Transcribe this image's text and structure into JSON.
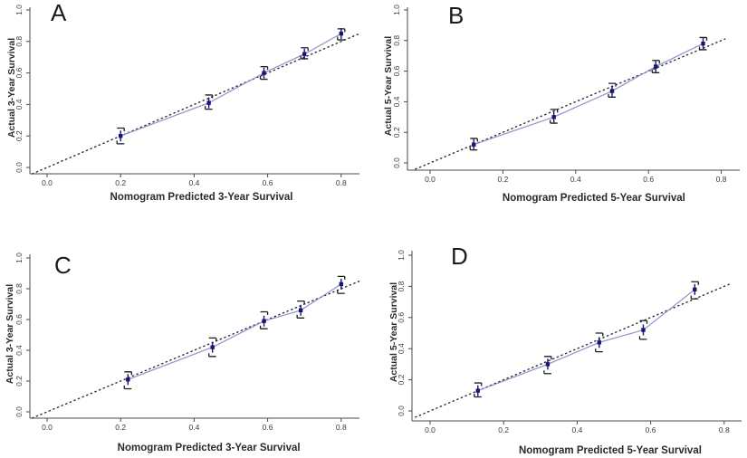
{
  "colors": {
    "background": "#ffffff",
    "calibration_line": "#9191cb",
    "marker": "#161679",
    "error_bar": "#1c1c1c",
    "reference_line": "#2e2e2e",
    "axis": "#4a4a4a",
    "tick_text": "#3b3b3b",
    "label_text": "#2a2a2a"
  },
  "chart_data": [
    {
      "type": "line",
      "panel_label": "A",
      "xlabel": "Nomogram Predicted 3-Year Survival",
      "ylabel": "Actual 3-Year Survival",
      "xlim": [
        -0.05,
        0.86
      ],
      "ylim": [
        -0.06,
        1.04
      ],
      "x_ticks": [
        0.0,
        0.2,
        0.4,
        0.6,
        0.8
      ],
      "x_tick_labels": [
        "0.0",
        "0.2",
        "0.4",
        "0.6",
        "0.8"
      ],
      "y_ticks": [
        0.0,
        0.2,
        0.4,
        0.6,
        0.8,
        1.0
      ],
      "y_tick_labels": [
        "0.0",
        "0.2",
        "0.4",
        "0.6",
        "0.8",
        "1.0"
      ],
      "grid": false,
      "reference_line": {
        "name": "ideal",
        "style": "dotted",
        "x_start": -0.04,
        "x_end": 0.85
      },
      "series": [
        {
          "name": "nomogram-calibration",
          "marker": "filled-square",
          "error_bars": true,
          "points": [
            {
              "x": 0.2,
              "y": 0.2,
              "lo": 0.15,
              "hi": 0.25
            },
            {
              "x": 0.44,
              "y": 0.41,
              "lo": 0.37,
              "hi": 0.46
            },
            {
              "x": 0.59,
              "y": 0.6,
              "lo": 0.56,
              "hi": 0.64
            },
            {
              "x": 0.7,
              "y": 0.72,
              "lo": 0.69,
              "hi": 0.76
            },
            {
              "x": 0.8,
              "y": 0.85,
              "lo": 0.81,
              "hi": 0.88
            }
          ]
        }
      ]
    },
    {
      "type": "line",
      "panel_label": "B",
      "xlabel": "Nomogram Predicted 5-Year Survival",
      "ylabel": "Actual 5-Year Survival",
      "xlim": [
        -0.05,
        0.86
      ],
      "ylim": [
        -0.06,
        1.04
      ],
      "x_ticks": [
        0.0,
        0.2,
        0.4,
        0.6,
        0.8
      ],
      "x_tick_labels": [
        "0.0",
        "0.2",
        "0.4",
        "0.6",
        "0.8"
      ],
      "y_ticks": [
        0.0,
        0.2,
        0.4,
        0.6,
        0.8,
        1.0
      ],
      "y_tick_labels": [
        "0.0",
        "0.2",
        "0.4",
        "0.6",
        "0.8",
        "1.0"
      ],
      "grid": false,
      "reference_line": {
        "name": "ideal",
        "style": "dotted",
        "x_start": -0.04,
        "x_end": 0.81
      },
      "series": [
        {
          "name": "nomogram-calibration",
          "marker": "filled-square",
          "error_bars": true,
          "points": [
            {
              "x": 0.12,
              "y": 0.12,
              "lo": 0.085,
              "hi": 0.16
            },
            {
              "x": 0.34,
              "y": 0.3,
              "lo": 0.26,
              "hi": 0.35
            },
            {
              "x": 0.5,
              "y": 0.47,
              "lo": 0.43,
              "hi": 0.52
            },
            {
              "x": 0.62,
              "y": 0.63,
              "lo": 0.59,
              "hi": 0.67
            },
            {
              "x": 0.75,
              "y": 0.78,
              "lo": 0.74,
              "hi": 0.82
            }
          ]
        }
      ]
    },
    {
      "type": "line",
      "panel_label": "C",
      "xlabel": "Nomogram Predicted 3-Year Survival",
      "ylabel": "Actual 3-Year Survival",
      "xlim": [
        -0.05,
        0.86
      ],
      "ylim": [
        -0.06,
        1.04
      ],
      "x_ticks": [
        0.0,
        0.2,
        0.4,
        0.6,
        0.8
      ],
      "x_tick_labels": [
        "0.0",
        "0.2",
        "0.4",
        "0.6",
        "0.8"
      ],
      "y_ticks": [
        0.0,
        0.2,
        0.4,
        0.6,
        0.8,
        1.0
      ],
      "y_tick_labels": [
        "0.0",
        "0.2",
        "0.4",
        "0.6",
        "0.8",
        "1.0"
      ],
      "grid": false,
      "reference_line": {
        "name": "ideal",
        "style": "dotted",
        "x_start": -0.04,
        "x_end": 0.85
      },
      "series": [
        {
          "name": "nomogram-calibration",
          "marker": "filled-square",
          "error_bars": true,
          "points": [
            {
              "x": 0.22,
              "y": 0.21,
              "lo": 0.15,
              "hi": 0.26
            },
            {
              "x": 0.45,
              "y": 0.42,
              "lo": 0.36,
              "hi": 0.48
            },
            {
              "x": 0.59,
              "y": 0.59,
              "lo": 0.54,
              "hi": 0.65
            },
            {
              "x": 0.69,
              "y": 0.66,
              "lo": 0.61,
              "hi": 0.72
            },
            {
              "x": 0.8,
              "y": 0.83,
              "lo": 0.77,
              "hi": 0.88
            }
          ]
        }
      ]
    },
    {
      "type": "line",
      "panel_label": "D",
      "xlabel": "Nomogram Predicted 5-Year Survival",
      "ylabel": "Actual 5-Year Survival",
      "xlim": [
        -0.05,
        0.86
      ],
      "ylim": [
        -0.06,
        1.04
      ],
      "x_ticks": [
        0.0,
        0.2,
        0.4,
        0.6,
        0.8
      ],
      "x_tick_labels": [
        "0.0",
        "0.2",
        "0.4",
        "0.6",
        "0.8"
      ],
      "y_ticks": [
        0.0,
        0.2,
        0.4,
        0.6,
        0.8,
        1.0
      ],
      "y_tick_labels": [
        "0.0",
        "0.2",
        "0.4",
        "0.6",
        "0.8",
        "1.0"
      ],
      "grid": false,
      "reference_line": {
        "name": "ideal",
        "style": "dotted",
        "x_start": -0.04,
        "x_end": 0.82
      },
      "series": [
        {
          "name": "nomogram-calibration",
          "marker": "filled-square",
          "error_bars": true,
          "points": [
            {
              "x": 0.13,
              "y": 0.13,
              "lo": 0.09,
              "hi": 0.18
            },
            {
              "x": 0.32,
              "y": 0.3,
              "lo": 0.24,
              "hi": 0.35
            },
            {
              "x": 0.46,
              "y": 0.44,
              "lo": 0.38,
              "hi": 0.5
            },
            {
              "x": 0.58,
              "y": 0.52,
              "lo": 0.46,
              "hi": 0.58
            },
            {
              "x": 0.72,
              "y": 0.78,
              "lo": 0.72,
              "hi": 0.83
            }
          ]
        }
      ]
    }
  ]
}
